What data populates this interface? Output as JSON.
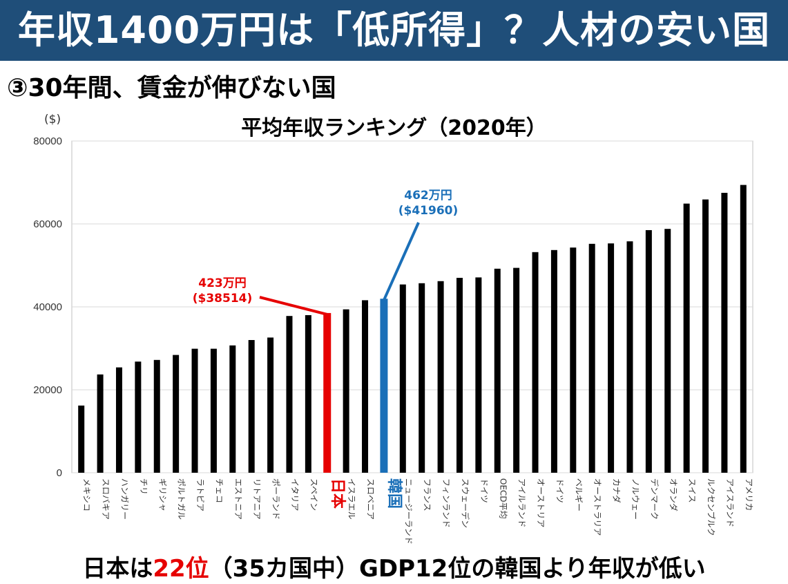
{
  "header": {
    "title": "年収1400万円は「低所得」？人材の安い国"
  },
  "subtitle": "③30年間、賃金が伸びない国",
  "footer": {
    "part1": "日本は",
    "rank": "22位",
    "part2": "（35カ国中）GDP12位の韓国より年収が低い"
  },
  "colors": {
    "header_bg": "#1f4e79",
    "bar": "#000000",
    "japan": "#e60000",
    "korea": "#1a6fb8"
  },
  "chart_data": {
    "type": "bar",
    "title": "平均年収ランキング（2020年）",
    "unit": "($)",
    "ylim": [
      0,
      80000
    ],
    "yticks": [
      0,
      20000,
      40000,
      60000,
      80000
    ],
    "grid": true,
    "categories": [
      "メキシコ",
      "スロバキア",
      "ハンガリー",
      "チリ",
      "ギリシャ",
      "ポルトガル",
      "ラトビア",
      "チェコ",
      "エストニア",
      "リトアニア",
      "ポーランド",
      "イタリア",
      "スペイン",
      "日本",
      "イスラエル",
      "スロベニア",
      "韓国",
      "ニュージーランド",
      "フランス",
      "フィンランド",
      "スウェーデン",
      "ドイツ",
      "OECD平均",
      "アイルランド",
      "オーストリア",
      "ドイツ",
      "ベルギー",
      "オーストラリア",
      "カナダ",
      "ノルウェー",
      "デンマーク",
      "オランダ",
      "スイス",
      "ルクセンブルク",
      "アイスランド",
      "アメリカ"
    ],
    "values": [
      16200,
      23700,
      25400,
      26800,
      27200,
      28400,
      29900,
      29900,
      30700,
      32000,
      32600,
      37800,
      38000,
      38514,
      39400,
      41600,
      41960,
      45400,
      45700,
      46200,
      47000,
      47100,
      49200,
      49400,
      53200,
      53700,
      54300,
      55200,
      55300,
      55800,
      58500,
      58800,
      64900,
      65900,
      67500,
      69400
    ],
    "annotations": [
      {
        "category": "日本",
        "line1": "423万円",
        "line2": "($38514)",
        "color": "#e60000"
      },
      {
        "category": "韓国",
        "line1": "462万円",
        "line2": "($41960)",
        "color": "#1a6fb8"
      }
    ]
  }
}
